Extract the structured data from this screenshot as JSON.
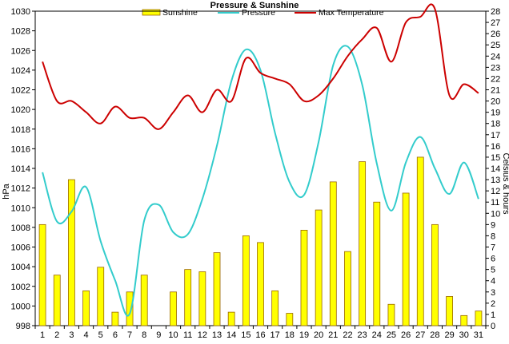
{
  "chart_data": {
    "type": "bar",
    "title": "Pressure & Sunshine",
    "ylabel_left": "hPa",
    "ylabel_right": "Celsius & hours",
    "categories": [
      "1",
      "2",
      "3",
      "4",
      "5",
      "6",
      "7",
      "8",
      "9",
      "10",
      "11",
      "12",
      "13",
      "14",
      "15",
      "16",
      "17",
      "18",
      "19",
      "20",
      "21",
      "22",
      "23",
      "24",
      "25",
      "26",
      "27",
      "28",
      "29",
      "30",
      "31"
    ],
    "ylim_left": [
      998,
      1030
    ],
    "yticks_left": [
      "998",
      "1000",
      "1002",
      "1004",
      "1006",
      "1008",
      "1010",
      "1012",
      "1014",
      "1016",
      "1018",
      "1020",
      "1022",
      "1024",
      "1026",
      "1028",
      "1030"
    ],
    "ylim_right": [
      0,
      28
    ],
    "yticks_right": [
      "0",
      "1",
      "2",
      "3",
      "4",
      "5",
      "6",
      "7",
      "8",
      "9",
      "10",
      "11",
      "12",
      "13",
      "14",
      "15",
      "16",
      "17",
      "18",
      "19",
      "20",
      "21",
      "22",
      "23",
      "24",
      "25",
      "26",
      "27",
      "28"
    ],
    "grid": false,
    "legend_position": "top",
    "series": [
      {
        "name": "Sunshine",
        "type": "bar",
        "axis": "right",
        "color": "#ffff00",
        "values": [
          9.0,
          4.5,
          13.0,
          3.1,
          5.2,
          1.2,
          3.0,
          4.5,
          0.0,
          3.0,
          5.0,
          4.8,
          6.5,
          1.2,
          8.0,
          7.4,
          3.1,
          1.1,
          8.5,
          10.3,
          12.8,
          6.6,
          14.6,
          11.0,
          1.9,
          11.8,
          15.0,
          9.0,
          2.6,
          0.9,
          1.3
        ]
      },
      {
        "name": "Pressure",
        "type": "line",
        "axis": "left",
        "color": "#33cccc",
        "values": [
          1013.6,
          1008.6,
          1009.6,
          1012.1,
          1006.6,
          1002.6,
          999.2,
          1008.7,
          1010.3,
          1007.5,
          1007.3,
          1010.9,
          1016.3,
          1022.9,
          1026.1,
          1024.0,
          1017.6,
          1012.6,
          1011.3,
          1016.7,
          1024.5,
          1026.4,
          1022.5,
          1014.5,
          1009.7,
          1014.6,
          1017.2,
          1014.0,
          1011.4,
          1014.6,
          1010.9
        ]
      },
      {
        "name": "Max Temperature",
        "type": "line",
        "axis": "right",
        "color": "#cc0000",
        "values": [
          23.5,
          20.0,
          20.0,
          19.0,
          18.0,
          19.5,
          18.5,
          18.5,
          17.5,
          19.0,
          20.5,
          19.0,
          21.0,
          20.0,
          23.8,
          22.5,
          22.0,
          21.5,
          20.0,
          20.5,
          22.0,
          24.0,
          25.5,
          26.5,
          23.5,
          27.0,
          27.5,
          28.2,
          20.5,
          21.5,
          20.7
        ]
      }
    ]
  }
}
